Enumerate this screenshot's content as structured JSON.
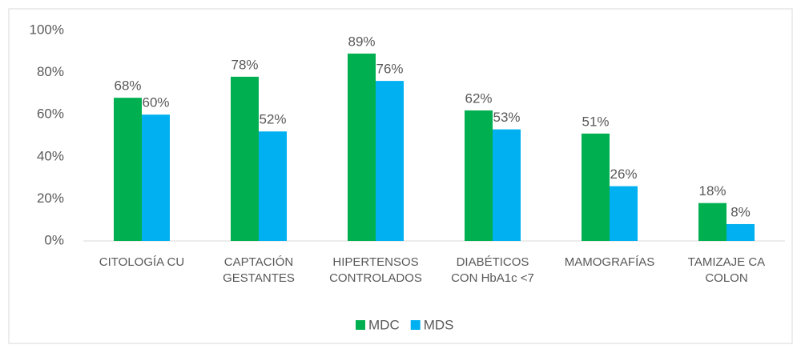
{
  "chart_data": {
    "type": "bar",
    "categories": [
      "CITOLOGÍA CU",
      "CAPTACIÓN\nGESTANTES",
      "HIPERTENSOS\nCONTROLADOS",
      "DIABÉTICOS\nCON HbA1c <7",
      "MAMOGRAFÍAS",
      "TAMIZAJE CA\nCOLON"
    ],
    "series": [
      {
        "name": "MDC",
        "color": "#00b050",
        "values": [
          68,
          78,
          89,
          62,
          51,
          18
        ],
        "value_labels": [
          "68%",
          "78%",
          "89%",
          "62%",
          "51%",
          "18%"
        ]
      },
      {
        "name": "MDS",
        "color": "#00b0f0",
        "values": [
          60,
          52,
          76,
          53,
          26,
          8
        ],
        "value_labels": [
          "60%",
          "52%",
          "76%",
          "53%",
          "26%",
          "8%"
        ]
      }
    ],
    "ylim": [
      0,
      100
    ],
    "yticks": [
      {
        "value": 0,
        "label": "0%"
      },
      {
        "value": 20,
        "label": "20%"
      },
      {
        "value": 40,
        "label": "40%"
      },
      {
        "value": 60,
        "label": "60%"
      },
      {
        "value": 80,
        "label": "80%"
      },
      {
        "value": 100,
        "label": "100%"
      }
    ],
    "grid": false,
    "legend": "bottom"
  }
}
